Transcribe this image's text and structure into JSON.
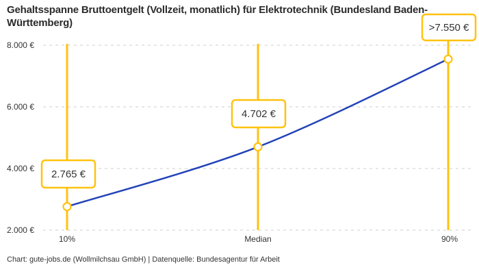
{
  "chart_data": {
    "type": "line",
    "title": "Gehaltsspanne Bruttoentgelt (Vollzeit, monatlich) für Elektrotechnik (Bundesland Baden-Württemberg)",
    "categories": [
      "10%",
      "Median",
      "90%"
    ],
    "values": [
      2765,
      4702,
      7550
    ],
    "value_labels": [
      "2.765 €",
      "4.702 €",
      ">7.550 €"
    ],
    "xlabel": "",
    "ylabel": "",
    "ylim": [
      2000,
      8000
    ],
    "ytick_labels": [
      "8.000 €",
      "6.000 €",
      "4.000 €",
      "2.000 €"
    ],
    "grid": "horizontal-dashed",
    "legend": "none",
    "annotations": "each data point has a vertical accent line and a boxed value label",
    "source": "Chart: gute-jobs.de (Wollmilchsau GmbH) | Datenquelle: Bundesagentur für Arbeit"
  },
  "colors": {
    "accent": "#FFC20E",
    "line": "#2343B8",
    "grid": "#CCCCCC",
    "text": "#2B2B2B",
    "axis-text": "#333333",
    "background": "#FFFFFF"
  }
}
